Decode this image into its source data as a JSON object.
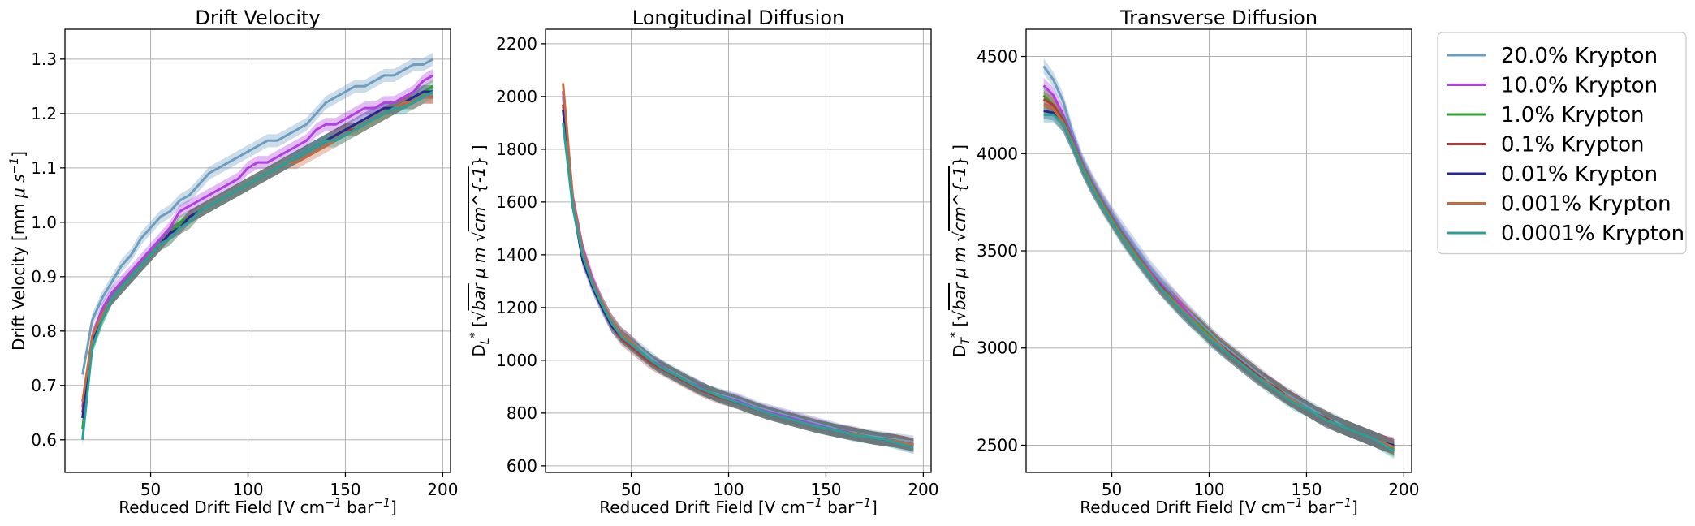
{
  "chart_data": [
    {
      "type": "line",
      "title": "Drift Velocity",
      "xlabel": "Reduced Drift Field [V cm$^{-1}$ bar$^{-1}$]",
      "ylabel": "Drift Velocity [mm $\\mu s^{-1}$]",
      "xlim": [
        6,
        204
      ],
      "ylim": [
        0.54,
        1.355
      ],
      "xticks": [
        "50",
        "100",
        "150",
        "200"
      ],
      "yticks": [
        "0.6",
        "0.7",
        "0.8",
        "0.9",
        "1.0",
        "1.1",
        "1.2",
        "1.3"
      ],
      "x": [
        15,
        20,
        25,
        30,
        35,
        40,
        45,
        50,
        55,
        60,
        65,
        70,
        75,
        80,
        85,
        90,
        95,
        100,
        105,
        110,
        115,
        120,
        125,
        130,
        135,
        140,
        145,
        150,
        155,
        160,
        165,
        170,
        175,
        180,
        185,
        190,
        195
      ],
      "band": 0.012,
      "series": [
        {
          "name": "20.0% Krypton",
          "values": [
            0.72,
            0.82,
            0.86,
            0.89,
            0.92,
            0.94,
            0.97,
            0.99,
            1.01,
            1.02,
            1.04,
            1.05,
            1.07,
            1.09,
            1.1,
            1.11,
            1.12,
            1.13,
            1.14,
            1.15,
            1.15,
            1.16,
            1.17,
            1.18,
            1.2,
            1.22,
            1.23,
            1.24,
            1.25,
            1.25,
            1.26,
            1.27,
            1.27,
            1.28,
            1.29,
            1.29,
            1.3
          ]
        },
        {
          "name": "10.0% Krypton",
          "values": [
            0.66,
            0.79,
            0.84,
            0.87,
            0.89,
            0.91,
            0.93,
            0.95,
            0.97,
            0.99,
            1.02,
            1.03,
            1.04,
            1.05,
            1.06,
            1.07,
            1.08,
            1.1,
            1.11,
            1.11,
            1.12,
            1.13,
            1.14,
            1.15,
            1.17,
            1.18,
            1.18,
            1.19,
            1.2,
            1.21,
            1.21,
            1.22,
            1.22,
            1.23,
            1.24,
            1.26,
            1.27
          ]
        },
        {
          "name": "1.0% Krypton",
          "values": [
            0.62,
            0.77,
            0.82,
            0.86,
            0.88,
            0.9,
            0.92,
            0.94,
            0.96,
            0.98,
            1.0,
            1.01,
            1.02,
            1.03,
            1.04,
            1.05,
            1.06,
            1.07,
            1.08,
            1.09,
            1.1,
            1.11,
            1.12,
            1.13,
            1.14,
            1.15,
            1.16,
            1.17,
            1.17,
            1.18,
            1.19,
            1.2,
            1.21,
            1.22,
            1.23,
            1.24,
            1.25
          ]
        },
        {
          "name": "0.1% Krypton",
          "values": [
            0.65,
            0.78,
            0.83,
            0.86,
            0.88,
            0.9,
            0.92,
            0.94,
            0.96,
            0.98,
            0.99,
            1.01,
            1.02,
            1.03,
            1.04,
            1.05,
            1.06,
            1.07,
            1.08,
            1.09,
            1.1,
            1.11,
            1.12,
            1.13,
            1.14,
            1.15,
            1.16,
            1.17,
            1.17,
            1.18,
            1.19,
            1.2,
            1.21,
            1.22,
            1.22,
            1.23,
            1.23
          ]
        },
        {
          "name": "0.01% Krypton",
          "values": [
            0.64,
            0.78,
            0.83,
            0.86,
            0.88,
            0.9,
            0.92,
            0.94,
            0.96,
            0.98,
            0.99,
            1.01,
            1.02,
            1.03,
            1.04,
            1.05,
            1.06,
            1.07,
            1.08,
            1.09,
            1.1,
            1.11,
            1.12,
            1.13,
            1.14,
            1.15,
            1.16,
            1.17,
            1.18,
            1.19,
            1.2,
            1.21,
            1.21,
            1.22,
            1.23,
            1.24,
            1.24
          ]
        },
        {
          "name": "0.001% Krypton",
          "values": [
            0.67,
            0.79,
            0.83,
            0.86,
            0.88,
            0.9,
            0.92,
            0.94,
            0.96,
            0.97,
            0.99,
            1.0,
            1.02,
            1.03,
            1.04,
            1.05,
            1.06,
            1.07,
            1.08,
            1.09,
            1.1,
            1.11,
            1.11,
            1.12,
            1.13,
            1.14,
            1.15,
            1.16,
            1.17,
            1.18,
            1.19,
            1.2,
            1.21,
            1.22,
            1.22,
            1.23,
            1.23
          ]
        },
        {
          "name": "0.0001% Krypton",
          "values": [
            0.6,
            0.77,
            0.82,
            0.86,
            0.88,
            0.9,
            0.92,
            0.94,
            0.96,
            0.97,
            0.99,
            1.0,
            1.02,
            1.03,
            1.04,
            1.05,
            1.06,
            1.07,
            1.08,
            1.09,
            1.1,
            1.11,
            1.12,
            1.13,
            1.14,
            1.15,
            1.15,
            1.16,
            1.17,
            1.18,
            1.19,
            1.2,
            1.21,
            1.21,
            1.22,
            1.23,
            1.24
          ]
        }
      ]
    },
    {
      "type": "line",
      "title": "Longitudinal Diffusion",
      "xlabel": "Reduced Drift Field [V cm$^{-1}$ bar$^{-1}$]",
      "ylabel": "D$_L^*$ [$\\sqrt{bar}$ $\\mu m$ $\\sqrt{cm^{-1}}$ ]",
      "xlim": [
        6,
        204
      ],
      "ylim": [
        575,
        2255
      ],
      "xticks": [
        "50",
        "100",
        "150",
        "200"
      ],
      "yticks": [
        "600",
        "800",
        "1000",
        "1200",
        "1400",
        "1600",
        "1800",
        "2000",
        "2200"
      ],
      "x": [
        15,
        20,
        25,
        30,
        35,
        40,
        45,
        50,
        55,
        60,
        65,
        70,
        75,
        80,
        85,
        90,
        95,
        100,
        105,
        110,
        115,
        120,
        125,
        130,
        135,
        140,
        145,
        150,
        155,
        160,
        165,
        170,
        175,
        180,
        185,
        190,
        195
      ],
      "band": 25,
      "series": [
        {
          "name": "20.0% Krypton",
          "values": [
            2000,
            1600,
            1420,
            1300,
            1220,
            1150,
            1100,
            1070,
            1040,
            1010,
            980,
            960,
            940,
            920,
            900,
            880,
            870,
            860,
            850,
            835,
            820,
            810,
            800,
            790,
            780,
            770,
            760,
            750,
            740,
            730,
            725,
            715,
            710,
            705,
            700,
            695,
            690
          ]
        },
        {
          "name": "10.0% Krypton",
          "values": [
            2020,
            1620,
            1430,
            1310,
            1220,
            1150,
            1100,
            1070,
            1030,
            1000,
            980,
            955,
            935,
            915,
            900,
            880,
            865,
            855,
            845,
            830,
            815,
            805,
            795,
            785,
            775,
            765,
            755,
            745,
            735,
            730,
            720,
            712,
            705,
            700,
            695,
            685,
            675
          ]
        },
        {
          "name": "1.0% Krypton",
          "values": [
            1950,
            1600,
            1400,
            1290,
            1210,
            1140,
            1090,
            1060,
            1030,
            1000,
            975,
            955,
            935,
            915,
            895,
            880,
            865,
            852,
            840,
            826,
            813,
            800,
            790,
            780,
            770,
            760,
            750,
            742,
            734,
            726,
            720,
            712,
            705,
            700,
            695,
            688,
            680
          ]
        },
        {
          "name": "0.1% Krypton",
          "values": [
            1970,
            1590,
            1390,
            1290,
            1210,
            1130,
            1080,
            1050,
            1020,
            990,
            970,
            950,
            930,
            910,
            890,
            875,
            860,
            850,
            838,
            825,
            812,
            800,
            790,
            780,
            770,
            760,
            750,
            742,
            734,
            726,
            720,
            712,
            705,
            700,
            695,
            688,
            680
          ]
        },
        {
          "name": "0.01% Krypton",
          "values": [
            1950,
            1590,
            1380,
            1280,
            1200,
            1130,
            1090,
            1060,
            1030,
            1000,
            975,
            955,
            935,
            915,
            895,
            880,
            865,
            852,
            840,
            826,
            813,
            800,
            790,
            780,
            770,
            760,
            750,
            742,
            734,
            726,
            720,
            712,
            705,
            700,
            695,
            688,
            680
          ]
        },
        {
          "name": "0.001% Krypton",
          "values": [
            2050,
            1610,
            1420,
            1300,
            1220,
            1150,
            1100,
            1070,
            1030,
            1000,
            975,
            955,
            935,
            915,
            895,
            880,
            865,
            852,
            840,
            826,
            813,
            800,
            790,
            780,
            770,
            760,
            750,
            742,
            734,
            726,
            720,
            712,
            705,
            700,
            695,
            688,
            680
          ]
        },
        {
          "name": "0.0001% Krypton",
          "values": [
            1900,
            1580,
            1400,
            1290,
            1210,
            1140,
            1090,
            1060,
            1030,
            1000,
            975,
            955,
            935,
            915,
            895,
            880,
            865,
            852,
            840,
            826,
            813,
            800,
            790,
            780,
            770,
            760,
            750,
            742,
            734,
            726,
            715,
            712,
            705,
            700,
            690,
            680,
            670
          ]
        }
      ]
    },
    {
      "type": "line",
      "title": "Transverse Diffusion",
      "xlabel": "Reduced Drift Field [V cm$^{-1}$ bar$^{-1}$]",
      "ylabel": "D$_T^*$ [$\\sqrt{bar}$ $\\mu m$ $\\sqrt{cm^{-1}}$ ]",
      "xlim": [
        6,
        204
      ],
      "ylim": [
        2360,
        4640
      ],
      "xticks": [
        "50",
        "100",
        "150",
        "200"
      ],
      "yticks": [
        "2500",
        "3000",
        "3500",
        "4000",
        "4500"
      ],
      "x": [
        15,
        20,
        25,
        30,
        35,
        40,
        45,
        50,
        55,
        60,
        65,
        70,
        75,
        80,
        85,
        90,
        95,
        100,
        105,
        110,
        115,
        120,
        125,
        130,
        135,
        140,
        145,
        150,
        155,
        160,
        165,
        170,
        175,
        180,
        185,
        190,
        195
      ],
      "band": 40,
      "series": [
        {
          "name": "20.0% Krypton",
          "values": [
            4450,
            4380,
            4270,
            4100,
            3960,
            3860,
            3770,
            3690,
            3620,
            3550,
            3480,
            3410,
            3350,
            3290,
            3230,
            3180,
            3130,
            3080,
            3030,
            2990,
            2950,
            2910,
            2870,
            2830,
            2790,
            2760,
            2730,
            2700,
            2670,
            2640,
            2620,
            2590,
            2570,
            2550,
            2530,
            2510,
            2490
          ]
        },
        {
          "name": "10.0% Krypton",
          "values": [
            4350,
            4300,
            4200,
            4080,
            3950,
            3850,
            3760,
            3680,
            3600,
            3530,
            3460,
            3390,
            3330,
            3280,
            3230,
            3170,
            3120,
            3070,
            3020,
            2980,
            2940,
            2900,
            2860,
            2820,
            2790,
            2750,
            2720,
            2690,
            2660,
            2640,
            2610,
            2590,
            2570,
            2550,
            2530,
            2510,
            2490
          ]
        },
        {
          "name": "1.0% Krypton",
          "values": [
            4300,
            4250,
            4180,
            4060,
            3940,
            3840,
            3750,
            3670,
            3590,
            3520,
            3450,
            3380,
            3320,
            3270,
            3210,
            3160,
            3120,
            3070,
            3020,
            2980,
            2940,
            2900,
            2860,
            2820,
            2790,
            2750,
            2720,
            2690,
            2660,
            2640,
            2610,
            2590,
            2570,
            2550,
            2530,
            2510,
            2480
          ]
        },
        {
          "name": "0.1% Krypton",
          "values": [
            4280,
            4250,
            4170,
            4050,
            3930,
            3830,
            3740,
            3660,
            3580,
            3510,
            3440,
            3380,
            3320,
            3260,
            3210,
            3160,
            3110,
            3060,
            3020,
            2980,
            2940,
            2900,
            2860,
            2820,
            2790,
            2750,
            2720,
            2690,
            2660,
            2640,
            2610,
            2590,
            2570,
            2550,
            2530,
            2510,
            2490
          ]
        },
        {
          "name": "0.01% Krypton",
          "values": [
            4220,
            4210,
            4150,
            4040,
            3920,
            3820,
            3740,
            3660,
            3580,
            3510,
            3440,
            3370,
            3310,
            3260,
            3200,
            3150,
            3110,
            3060,
            3010,
            2970,
            2930,
            2890,
            2850,
            2820,
            2780,
            2750,
            2720,
            2690,
            2660,
            2630,
            2610,
            2590,
            2570,
            2550,
            2530,
            2510,
            2500
          ]
        },
        {
          "name": "0.001% Krypton",
          "values": [
            4250,
            4230,
            4160,
            4050,
            3930,
            3830,
            3740,
            3660,
            3580,
            3510,
            3440,
            3380,
            3310,
            3260,
            3210,
            3160,
            3110,
            3060,
            3020,
            2970,
            2930,
            2890,
            2850,
            2820,
            2780,
            2750,
            2720,
            2690,
            2660,
            2630,
            2610,
            2590,
            2570,
            2550,
            2530,
            2510,
            2490
          ]
        },
        {
          "name": "0.0001% Krypton",
          "values": [
            4200,
            4200,
            4150,
            4040,
            3920,
            3820,
            3730,
            3650,
            3570,
            3500,
            3430,
            3370,
            3310,
            3250,
            3200,
            3150,
            3100,
            3050,
            3010,
            2970,
            2930,
            2890,
            2850,
            2810,
            2780,
            2740,
            2710,
            2690,
            2660,
            2630,
            2610,
            2590,
            2570,
            2550,
            2530,
            2500,
            2470
          ]
        }
      ]
    }
  ],
  "legend": {
    "placement": "outside-right",
    "items": [
      {
        "label": "20.0% Krypton",
        "color": "#6d9ec0"
      },
      {
        "label": "10.0% Krypton",
        "color": "#b040e0"
      },
      {
        "label": "1.0% Krypton",
        "color": "#2ca02c"
      },
      {
        "label": "0.1% Krypton",
        "color": "#b03838"
      },
      {
        "label": "0.01% Krypton",
        "color": "#27288f"
      },
      {
        "label": "0.001% Krypton",
        "color": "#c26a42"
      },
      {
        "label": "0.0001% Krypton",
        "color": "#2aa198"
      }
    ]
  }
}
